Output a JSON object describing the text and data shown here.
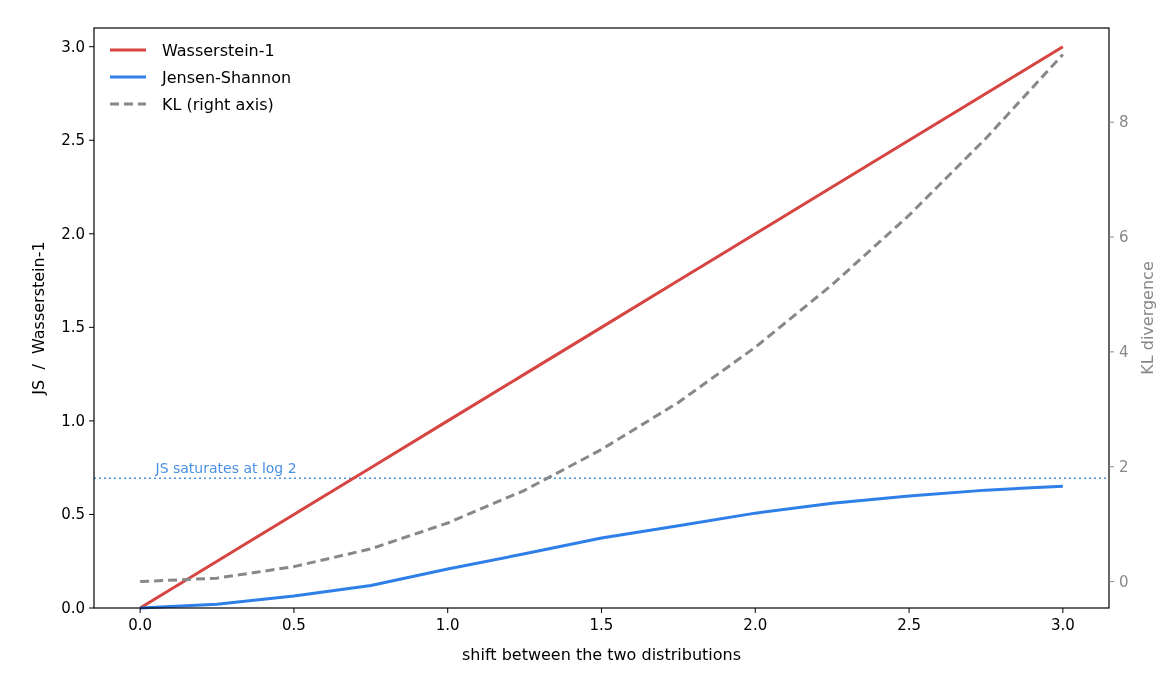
{
  "chart_data": {
    "type": "line",
    "xlabel": "shift between the two distributions",
    "ylabel": "JS  /  Wasserstein-1",
    "y2label": "KL divergence",
    "xlim": [
      -0.15,
      3.15
    ],
    "xticks": [
      {
        "value": 0,
        "label": "0.0"
      },
      {
        "value": 0.5,
        "label": "0.5"
      },
      {
        "value": 1,
        "label": "1.0"
      },
      {
        "value": 1.5,
        "label": "1.5"
      },
      {
        "value": 2,
        "label": "2.0"
      },
      {
        "value": 2.5,
        "label": "2.5"
      },
      {
        "value": 3,
        "label": "3.0"
      }
    ],
    "ylim": [
      0,
      3.1
    ],
    "yticks": [
      {
        "value": 0,
        "label": "0.0"
      },
      {
        "value": 0.5,
        "label": "0.5"
      },
      {
        "value": 1,
        "label": "1.0"
      },
      {
        "value": 1.5,
        "label": "1.5"
      },
      {
        "value": 2,
        "label": "2.0"
      },
      {
        "value": 2.5,
        "label": "2.5"
      },
      {
        "value": 3,
        "label": "3.0"
      }
    ],
    "y2lim": [
      -0.46,
      9.64
    ],
    "y2ticks": [
      0,
      2,
      4,
      6,
      8
    ],
    "x": [
      0,
      0.25,
      0.5,
      0.75,
      1,
      1.25,
      1.5,
      1.75,
      2,
      2.25,
      2.5,
      2.75,
      3
    ],
    "series": [
      {
        "name": "Wasserstein-1",
        "color": "#d64541",
        "values": [
          0,
          0.25,
          0.5,
          0.75,
          1,
          1.25,
          1.5,
          1.75,
          2,
          2.25,
          2.5,
          2.75,
          3
        ]
      },
      {
        "name": "Jensen-Shannon",
        "color": "#2f7fe8",
        "values": [
          0,
          0.02,
          0.064,
          0.12,
          0.208,
          0.29,
          0.374,
          0.44,
          0.507,
          0.56,
          0.598,
          0.63,
          0.651
        ]
      },
      {
        "name": "KL (right axis)",
        "color": "#888888",
        "axis": "y2",
        "line_style": "dashed",
        "values": [
          0,
          0.06,
          0.26,
          0.57,
          1.02,
          1.59,
          2.3,
          3.12,
          4.08,
          5.17,
          6.38,
          7.72,
          9.18
        ]
      }
    ],
    "ref_lines": [
      {
        "axis": "y",
        "value": 0.693,
        "label": "JS saturates at log 2",
        "color": "#4a90e2",
        "line_style": "dotted"
      }
    ],
    "legend": "top left",
    "grid": false
  }
}
